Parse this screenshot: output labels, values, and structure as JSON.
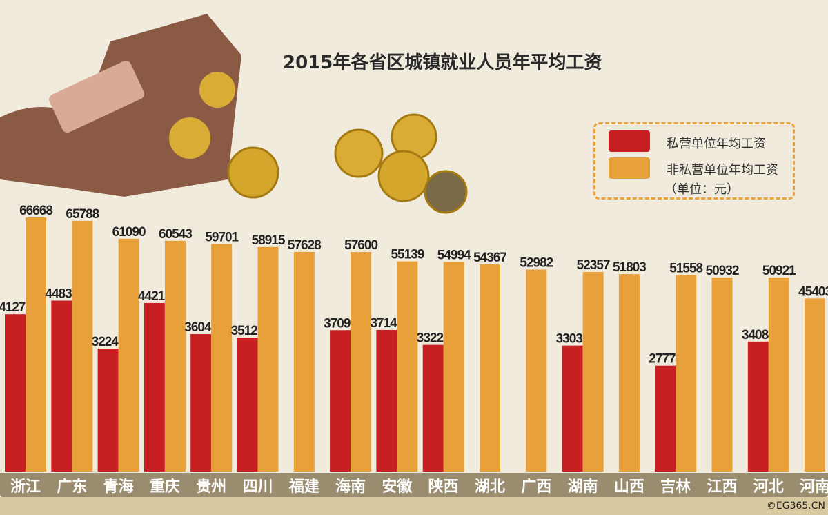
{
  "chart_data": {
    "type": "bar",
    "title": "2015年各省区城镇就业人员年平均工资",
    "categories": [
      "浙江",
      "广东",
      "青海",
      "重庆",
      "贵州",
      "四川",
      "福建",
      "海南",
      "安徽",
      "陕西",
      "湖北",
      "广西",
      "湖南",
      "山西",
      "吉林",
      "江西",
      "河北",
      "河南"
    ],
    "series": [
      {
        "name": "私营单位年均工资",
        "color": "#c71f22",
        "values": [
          41272,
          44838,
          32248,
          44213,
          36044,
          35127,
          null,
          37093,
          37148,
          33220,
          null,
          null,
          33033,
          null,
          27774,
          null,
          34084,
          null
        ]
      },
      {
        "name": "非私营单位年均工资",
        "color": "#e8a03a",
        "values": [
          66668,
          65788,
          61090,
          60543,
          59701,
          58915,
          57628,
          57600,
          55139,
          54994,
          54367,
          52982,
          52357,
          51803,
          51558,
          50932,
          50921,
          45403
        ]
      }
    ],
    "unit_note": "（单位：元）",
    "ylim": [
      0,
      70000
    ],
    "grid": false,
    "legend": "top-right"
  },
  "credit": "©EG365.CN"
}
